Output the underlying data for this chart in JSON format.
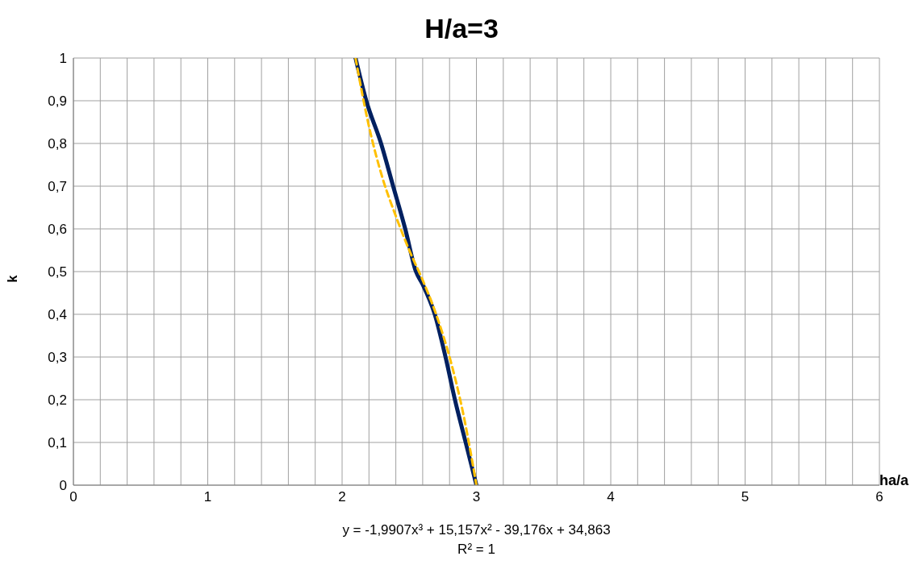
{
  "chart_data": {
    "type": "line",
    "title": "H/a=3",
    "xlabel": "ha/a",
    "ylabel": "k",
    "xlim": [
      0,
      6
    ],
    "xticks": [
      0,
      {
        "value": 0.2,
        "label": null
      },
      {
        "value": 0.4,
        "label": null
      },
      {
        "value": 0.6,
        "label": null
      },
      {
        "value": 0.8,
        "label": null
      },
      1,
      {
        "value": 1.2,
        "label": null
      },
      {
        "value": 1.4,
        "label": null
      },
      {
        "value": 1.6,
        "label": null
      },
      {
        "value": 1.8,
        "label": null
      },
      2,
      {
        "value": 2.2,
        "label": null
      },
      {
        "value": 2.4,
        "label": null
      },
      {
        "value": 2.6,
        "label": null
      },
      {
        "value": 2.8,
        "label": null
      },
      3,
      {
        "value": 3.2,
        "label": null
      },
      {
        "value": 3.4,
        "label": null
      },
      {
        "value": 3.6,
        "label": null
      },
      {
        "value": 3.8,
        "label": null
      },
      4,
      {
        "value": 4.2,
        "label": null
      },
      {
        "value": 4.4,
        "label": null
      },
      {
        "value": 4.6,
        "label": null
      },
      {
        "value": 4.8,
        "label": null
      },
      5,
      {
        "value": 5.2,
        "label": null
      },
      {
        "value": 5.4,
        "label": null
      },
      {
        "value": 5.6,
        "label": null
      },
      {
        "value": 5.8,
        "label": null
      },
      6
    ],
    "ylim": [
      0,
      1
    ],
    "yticks": [
      0,
      {
        "value": 0.1,
        "label": "0,1"
      },
      {
        "value": 0.2,
        "label": "0,2"
      },
      {
        "value": 0.3,
        "label": "0,3"
      },
      {
        "value": 0.4,
        "label": "0,4"
      },
      {
        "value": 0.5,
        "label": "0,5"
      },
      {
        "value": 0.6,
        "label": "0,6"
      },
      {
        "value": 0.7,
        "label": "0,7"
      },
      {
        "value": 0.8,
        "label": "0,8"
      },
      {
        "value": 0.9,
        "label": "0,9"
      },
      1
    ],
    "grid": true,
    "marker": "none",
    "series": [
      {
        "color": "#002060",
        "line_style": "solid",
        "x": [
          2.1,
          2.18,
          2.29,
          2.38,
          2.47,
          2.55,
          2.6,
          2.69,
          2.77,
          2.84,
          2.92,
          3.0
        ],
        "values": [
          1,
          0.9,
          0.8,
          0.7,
          0.6,
          0.5,
          0.47,
          0.4,
          0.3,
          0.2,
          0.1,
          0
        ]
      },
      {
        "color": "#ffc000",
        "line_style": "dashed",
        "x": [
          2.1,
          2.2,
          2.3,
          2.4,
          2.5,
          2.6,
          2.7,
          2.8,
          2.9,
          3.0
        ],
        "values": [
          1,
          0.84,
          0.72,
          0.63,
          0.55,
          0.48,
          0.4,
          0.3,
          0.17,
          0
        ]
      }
    ],
    "annotations": [
      "y = -1,9907x³ + 15,157x² - 39,176x + 34,863",
      "R² = 1"
    ]
  }
}
